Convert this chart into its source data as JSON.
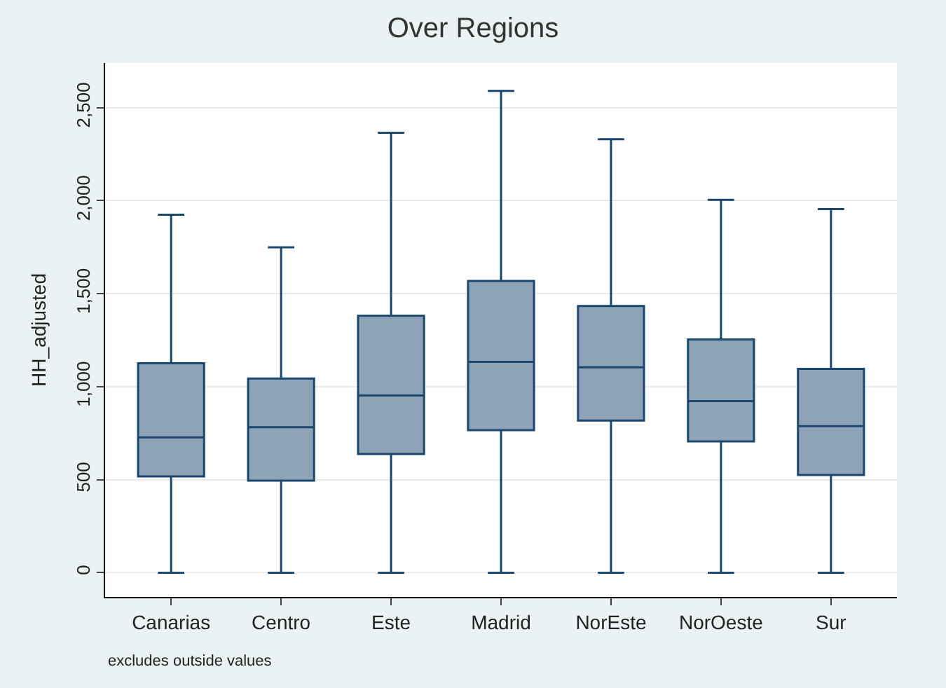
{
  "chart_data": {
    "type": "box",
    "title": "Over Regions",
    "ylabel": "HH_adjusted",
    "categories": [
      "Canarias",
      "Centro",
      "Este",
      "Madrid",
      "NorEste",
      "NorOeste",
      "Sur"
    ],
    "color": "#8fa3b8",
    "boxes": [
      {
        "low": 0,
        "q1": 518,
        "median": 728,
        "q3": 1126,
        "high": 1925
      },
      {
        "low": 0,
        "q1": 495,
        "median": 782,
        "q3": 1044,
        "high": 1749
      },
      {
        "low": 0,
        "q1": 638,
        "median": 953,
        "q3": 1381,
        "high": 2365
      },
      {
        "low": 0,
        "q1": 766,
        "median": 1134,
        "q3": 1569,
        "high": 2590
      },
      {
        "low": 0,
        "q1": 818,
        "median": 1104,
        "q3": 1434,
        "high": 2330
      },
      {
        "low": 0,
        "q1": 706,
        "median": 923,
        "q3": 1254,
        "high": 2005
      },
      {
        "low": 0,
        "q1": 525,
        "median": 788,
        "q3": 1096,
        "high": 1955
      }
    ],
    "ylim": [
      -130,
      2740
    ],
    "yticks": [
      0,
      500,
      {
        "value": 1000,
        "label": "1,000"
      },
      {
        "value": 1500,
        "label": "1,500"
      },
      {
        "value": 2000,
        "label": "2,000"
      },
      {
        "value": 2500,
        "label": "2,500"
      }
    ],
    "grid": "y",
    "annotations": [
      "excludes outside values"
    ]
  }
}
